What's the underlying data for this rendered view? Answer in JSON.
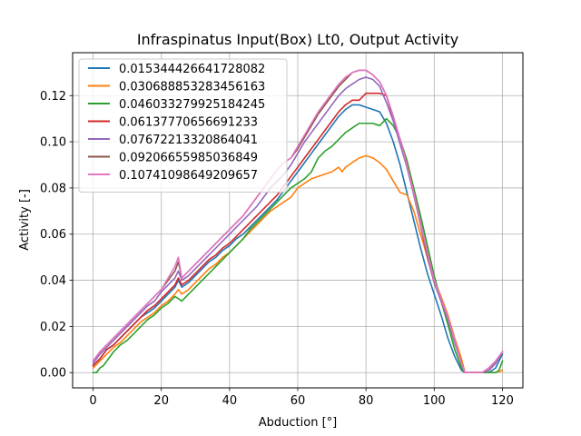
{
  "chart_data": {
    "type": "line",
    "title": "Infraspinatus Input(Box) Lt0, Output Activity",
    "xlabel": "Abduction [°]",
    "ylabel": "Activity [-]",
    "xlim": [
      -6,
      126
    ],
    "ylim": [
      -0.0066,
      0.1386
    ],
    "xticks": [
      0,
      20,
      40,
      60,
      80,
      100,
      120
    ],
    "xtick_labels": [
      "0",
      "20",
      "40",
      "60",
      "80",
      "100",
      "120"
    ],
    "yticks": [
      0.0,
      0.02,
      0.04,
      0.06,
      0.08,
      0.1,
      0.12
    ],
    "ytick_labels": [
      "0.00",
      "0.02",
      "0.04",
      "0.06",
      "0.08",
      "0.10",
      "0.12"
    ],
    "grid": true,
    "legend_position": "top-left",
    "series": [
      {
        "name": "0.015344426641728082",
        "color": "#1f77b4",
        "x": [
          0,
          2,
          4,
          6,
          8,
          10,
          12,
          14,
          16,
          18,
          20,
          22,
          24,
          25,
          26,
          28,
          30,
          32,
          34,
          36,
          38,
          40,
          42,
          44,
          46,
          48,
          50,
          52,
          54,
          56,
          58,
          60,
          62,
          64,
          66,
          68,
          70,
          72,
          74,
          76,
          78,
          80,
          82,
          84,
          86,
          88,
          90,
          92,
          94,
          96,
          98,
          100,
          102,
          104,
          106,
          108,
          109,
          110,
          112,
          114,
          116,
          118,
          120
        ],
        "y": [
          0.003,
          0.006,
          0.01,
          0.012,
          0.015,
          0.018,
          0.021,
          0.024,
          0.026,
          0.028,
          0.031,
          0.034,
          0.037,
          0.04,
          0.037,
          0.039,
          0.042,
          0.045,
          0.048,
          0.05,
          0.053,
          0.055,
          0.058,
          0.06,
          0.063,
          0.066,
          0.069,
          0.072,
          0.075,
          0.079,
          0.083,
          0.087,
          0.091,
          0.095,
          0.099,
          0.103,
          0.107,
          0.111,
          0.114,
          0.116,
          0.116,
          0.115,
          0.114,
          0.113,
          0.108,
          0.1,
          0.09,
          0.078,
          0.066,
          0.054,
          0.043,
          0.034,
          0.025,
          0.015,
          0.007,
          0.001,
          0.0,
          0.0,
          0.0,
          0.0,
          0.0,
          0.002,
          0.008
        ]
      },
      {
        "name": "0.030688853283456163",
        "color": "#ff7f0e",
        "x": [
          0,
          2,
          4,
          6,
          8,
          10,
          12,
          14,
          16,
          18,
          20,
          22,
          24,
          25,
          26,
          28,
          30,
          32,
          34,
          36,
          38,
          40,
          42,
          44,
          46,
          48,
          50,
          52,
          54,
          56,
          58,
          60,
          62,
          64,
          66,
          68,
          70,
          72,
          73,
          74,
          76,
          78,
          80,
          82,
          84,
          86,
          88,
          90,
          92,
          94,
          96,
          98,
          100,
          102,
          104,
          106,
          108,
          109,
          110,
          112,
          114,
          116,
          118,
          120
        ],
        "y": [
          0.002,
          0.005,
          0.008,
          0.011,
          0.013,
          0.016,
          0.019,
          0.022,
          0.024,
          0.026,
          0.029,
          0.031,
          0.034,
          0.036,
          0.034,
          0.036,
          0.039,
          0.042,
          0.045,
          0.047,
          0.05,
          0.052,
          0.055,
          0.058,
          0.061,
          0.064,
          0.067,
          0.07,
          0.072,
          0.074,
          0.076,
          0.08,
          0.082,
          0.084,
          0.085,
          0.086,
          0.087,
          0.089,
          0.087,
          0.089,
          0.091,
          0.093,
          0.094,
          0.093,
          0.091,
          0.088,
          0.083,
          0.078,
          0.077,
          0.07,
          0.06,
          0.05,
          0.04,
          0.033,
          0.025,
          0.015,
          0.006,
          0.0,
          0.0,
          0.0,
          0.0,
          0.0,
          0.0,
          0.001
        ]
      },
      {
        "name": "0.046033279925184245",
        "color": "#2ca02c",
        "x": [
          0,
          1,
          2,
          3,
          4,
          6,
          8,
          10,
          12,
          14,
          16,
          18,
          20,
          22,
          24,
          25,
          26,
          28,
          30,
          32,
          34,
          36,
          38,
          40,
          42,
          44,
          46,
          48,
          50,
          52,
          54,
          56,
          58,
          60,
          62,
          64,
          66,
          68,
          70,
          72,
          74,
          76,
          78,
          80,
          82,
          84,
          86,
          88,
          90,
          92,
          94,
          96,
          98,
          100,
          102,
          104,
          106,
          108,
          109,
          110,
          112,
          114,
          116,
          118,
          119,
          120
        ],
        "y": [
          0.0,
          0.0,
          0.002,
          0.003,
          0.005,
          0.009,
          0.012,
          0.014,
          0.017,
          0.02,
          0.023,
          0.025,
          0.028,
          0.03,
          0.033,
          0.032,
          0.031,
          0.034,
          0.037,
          0.04,
          0.043,
          0.046,
          0.049,
          0.052,
          0.055,
          0.058,
          0.062,
          0.065,
          0.068,
          0.071,
          0.074,
          0.077,
          0.08,
          0.082,
          0.084,
          0.087,
          0.093,
          0.096,
          0.098,
          0.101,
          0.104,
          0.106,
          0.108,
          0.108,
          0.108,
          0.107,
          0.11,
          0.107,
          0.101,
          0.092,
          0.08,
          0.068,
          0.055,
          0.042,
          0.031,
          0.021,
          0.01,
          0.002,
          0.0,
          0.0,
          0.0,
          0.0,
          0.0,
          0.0,
          0.001,
          0.005
        ]
      },
      {
        "name": "0.06137770656691233",
        "color": "#d62728",
        "x": [
          0,
          2,
          4,
          6,
          8,
          10,
          12,
          14,
          16,
          18,
          20,
          22,
          24,
          25,
          26,
          28,
          30,
          32,
          34,
          36,
          38,
          40,
          42,
          44,
          46,
          48,
          50,
          52,
          54,
          56,
          58,
          60,
          62,
          64,
          66,
          68,
          70,
          72,
          74,
          76,
          78,
          80,
          82,
          84,
          86,
          88,
          90,
          92,
          94,
          96,
          98,
          100,
          102,
          104,
          106,
          108,
          109,
          110,
          112,
          114,
          116,
          118,
          120
        ],
        "y": [
          0.003,
          0.006,
          0.01,
          0.012,
          0.015,
          0.018,
          0.021,
          0.024,
          0.027,
          0.029,
          0.032,
          0.035,
          0.038,
          0.041,
          0.038,
          0.04,
          0.043,
          0.046,
          0.049,
          0.051,
          0.054,
          0.056,
          0.059,
          0.062,
          0.065,
          0.068,
          0.071,
          0.074,
          0.077,
          0.081,
          0.085,
          0.089,
          0.093,
          0.097,
          0.101,
          0.105,
          0.109,
          0.113,
          0.116,
          0.118,
          0.118,
          0.121,
          0.121,
          0.121,
          0.12,
          0.11,
          0.101,
          0.09,
          0.078,
          0.064,
          0.05,
          0.039,
          0.031,
          0.023,
          0.013,
          0.004,
          0.0,
          0.0,
          0.0,
          0.0,
          0.001,
          0.004,
          0.009
        ]
      },
      {
        "name": "0.07672213320864041",
        "color": "#9467bd",
        "x": [
          0,
          2,
          4,
          6,
          8,
          10,
          12,
          14,
          16,
          18,
          20,
          22,
          24,
          25,
          26,
          28,
          30,
          32,
          34,
          36,
          38,
          40,
          42,
          44,
          46,
          48,
          50,
          52,
          54,
          56,
          58,
          60,
          62,
          64,
          66,
          68,
          70,
          72,
          74,
          76,
          78,
          80,
          82,
          84,
          86,
          88,
          90,
          92,
          94,
          96,
          98,
          100,
          102,
          104,
          106,
          108,
          109,
          110,
          112,
          114,
          116,
          118,
          120
        ],
        "y": [
          0.004,
          0.008,
          0.011,
          0.014,
          0.017,
          0.02,
          0.023,
          0.026,
          0.029,
          0.031,
          0.035,
          0.038,
          0.041,
          0.044,
          0.04,
          0.042,
          0.045,
          0.048,
          0.051,
          0.054,
          0.057,
          0.06,
          0.063,
          0.066,
          0.069,
          0.072,
          0.076,
          0.08,
          0.083,
          0.086,
          0.09,
          0.095,
          0.1,
          0.104,
          0.108,
          0.112,
          0.116,
          0.12,
          0.123,
          0.125,
          0.127,
          0.128,
          0.127,
          0.124,
          0.117,
          0.109,
          0.099,
          0.089,
          0.077,
          0.064,
          0.051,
          0.039,
          0.031,
          0.023,
          0.013,
          0.004,
          0.0,
          0.0,
          0.0,
          0.0,
          0.001,
          0.004,
          0.009
        ]
      },
      {
        "name": "0.09206655985036849",
        "color": "#8c564b",
        "x": [
          0,
          2,
          4,
          6,
          8,
          10,
          12,
          14,
          16,
          18,
          20,
          22,
          24,
          25,
          26,
          28,
          30,
          32,
          34,
          36,
          38,
          40,
          42,
          44,
          46,
          48,
          50,
          52,
          54,
          56,
          58,
          60,
          62,
          64,
          66,
          68,
          70,
          72,
          74,
          76,
          78,
          80,
          82,
          84,
          86,
          88,
          90,
          92,
          94,
          96,
          98,
          100,
          102,
          104,
          106,
          108,
          109,
          110,
          112,
          114,
          116,
          118,
          120
        ],
        "y": [
          0.005,
          0.009,
          0.012,
          0.015,
          0.018,
          0.021,
          0.024,
          0.027,
          0.03,
          0.033,
          0.036,
          0.04,
          0.044,
          0.048,
          0.041,
          0.044,
          0.047,
          0.05,
          0.053,
          0.056,
          0.059,
          0.062,
          0.065,
          0.068,
          0.072,
          0.076,
          0.08,
          0.084,
          0.088,
          0.091,
          0.093,
          0.097,
          0.102,
          0.107,
          0.112,
          0.116,
          0.12,
          0.124,
          0.127,
          0.13,
          0.131,
          0.131,
          0.129,
          0.126,
          0.12,
          0.111,
          0.101,
          0.09,
          0.078,
          0.065,
          0.052,
          0.04,
          0.032,
          0.024,
          0.014,
          0.004,
          0.0,
          0.0,
          0.0,
          0.0,
          0.002,
          0.005,
          0.009
        ]
      },
      {
        "name": "0.10741098649209657",
        "color": "#e377c2",
        "x": [
          0,
          2,
          4,
          6,
          8,
          10,
          12,
          14,
          16,
          18,
          20,
          22,
          24,
          25,
          26,
          28,
          30,
          32,
          34,
          36,
          38,
          40,
          42,
          44,
          46,
          48,
          50,
          52,
          54,
          56,
          58,
          60,
          62,
          64,
          66,
          68,
          70,
          72,
          74,
          76,
          78,
          80,
          82,
          84,
          86,
          88,
          90,
          92,
          94,
          96,
          98,
          100,
          102,
          104,
          106,
          108,
          109,
          110,
          112,
          114,
          116,
          118,
          120
        ],
        "y": [
          0.005,
          0.009,
          0.012,
          0.015,
          0.018,
          0.021,
          0.024,
          0.027,
          0.03,
          0.033,
          0.036,
          0.041,
          0.046,
          0.05,
          0.041,
          0.044,
          0.047,
          0.05,
          0.053,
          0.056,
          0.059,
          0.062,
          0.065,
          0.068,
          0.072,
          0.076,
          0.08,
          0.084,
          0.088,
          0.091,
          0.093,
          0.098,
          0.103,
          0.108,
          0.113,
          0.117,
          0.121,
          0.125,
          0.128,
          0.13,
          0.131,
          0.131,
          0.129,
          0.126,
          0.12,
          0.111,
          0.101,
          0.09,
          0.078,
          0.065,
          0.052,
          0.04,
          0.032,
          0.024,
          0.014,
          0.004,
          0.0,
          0.0,
          0.0,
          0.0,
          0.002,
          0.005,
          0.009
        ]
      }
    ]
  }
}
